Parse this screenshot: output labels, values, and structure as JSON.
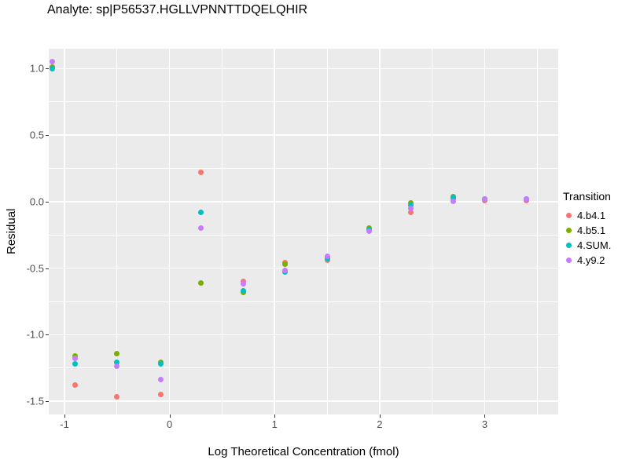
{
  "title": "Analyte: sp|P56537.HGLLVPNNTTDQELQHIR",
  "chart_data": {
    "type": "scatter",
    "title": "Analyte: sp|P56537.HGLLVPNNTTDQELQHIR",
    "xlabel": "Log Theoretical Concentration (fmol)",
    "ylabel": "Residual",
    "legend_title": "Transition",
    "legend_position": "right",
    "panel_background": "#EBEBEB",
    "grid": "on",
    "x_range": [
      -1.15,
      3.7
    ],
    "y_range": [
      -1.6,
      1.15
    ],
    "x_ticks": [
      {
        "v": -1,
        "label": "-1"
      },
      {
        "v": 0,
        "label": "0"
      },
      {
        "v": 1,
        "label": "1"
      },
      {
        "v": 2,
        "label": "2"
      },
      {
        "v": 3,
        "label": "3"
      }
    ],
    "y_ticks": [
      {
        "v": -1.5,
        "label": "-1.5"
      },
      {
        "v": -1.0,
        "label": "-1.0"
      },
      {
        "v": -0.5,
        "label": "-0.5"
      },
      {
        "v": 0.0,
        "label": "0.0"
      },
      {
        "v": 0.5,
        "label": "0.5"
      },
      {
        "v": 1.0,
        "label": "1.0"
      }
    ],
    "x_minor_ticks": [
      -0.5,
      0.5,
      1.5,
      2.5,
      3.5
    ],
    "y_minor_ticks": [
      -1.25,
      -0.75,
      -0.25,
      0.25,
      0.75
    ],
    "series": [
      {
        "name": "4.b4.1",
        "color": "#F8766D",
        "points": [
          [
            -1.12,
            1.01
          ],
          [
            -0.9,
            -1.38
          ],
          [
            -0.5,
            -1.47
          ],
          [
            -0.08,
            -1.45
          ],
          [
            0.3,
            0.22
          ],
          [
            0.7,
            -0.6
          ],
          [
            1.1,
            -0.46
          ],
          [
            1.5,
            -0.44
          ],
          [
            1.9,
            -0.21
          ],
          [
            2.3,
            -0.08
          ],
          [
            2.7,
            0.02
          ],
          [
            3.0,
            0.01
          ],
          [
            3.4,
            0.01
          ]
        ]
      },
      {
        "name": "4.b5.1",
        "color": "#7CAE00",
        "points": [
          [
            -1.12,
            1.01
          ],
          [
            -0.9,
            -1.16
          ],
          [
            -0.5,
            -1.14
          ],
          [
            -0.08,
            -1.21
          ],
          [
            0.3,
            -0.61
          ],
          [
            0.7,
            -0.68
          ],
          [
            1.1,
            -0.47
          ],
          [
            1.5,
            -0.42
          ],
          [
            1.9,
            -0.2
          ],
          [
            2.3,
            -0.01
          ],
          [
            2.7,
            0.04
          ],
          [
            3.0,
            0.02
          ],
          [
            3.4,
            0.02
          ]
        ]
      },
      {
        "name": "4.SUM.",
        "color": "#00BFC4",
        "points": [
          [
            -1.12,
            1.0
          ],
          [
            -0.9,
            -1.22
          ],
          [
            -0.5,
            -1.21
          ],
          [
            -0.08,
            -1.22
          ],
          [
            0.3,
            -0.08
          ],
          [
            0.7,
            -0.67
          ],
          [
            1.1,
            -0.53
          ],
          [
            1.5,
            -0.43
          ],
          [
            1.9,
            -0.21
          ],
          [
            2.3,
            -0.03
          ],
          [
            2.7,
            0.03
          ],
          [
            3.0,
            0.02
          ],
          [
            3.4,
            0.02
          ]
        ]
      },
      {
        "name": "4.y9.2",
        "color": "#C77CFF",
        "points": [
          [
            -1.12,
            1.05
          ],
          [
            -0.9,
            -1.18
          ],
          [
            -0.5,
            -1.24
          ],
          [
            -0.08,
            -1.34
          ],
          [
            0.3,
            -0.2
          ],
          [
            0.7,
            -0.62
          ],
          [
            1.1,
            -0.52
          ],
          [
            1.5,
            -0.41
          ],
          [
            1.9,
            -0.22
          ],
          [
            2.3,
            -0.05
          ],
          [
            2.7,
            0.0
          ],
          [
            3.0,
            0.02
          ],
          [
            3.4,
            0.02
          ]
        ]
      }
    ]
  }
}
